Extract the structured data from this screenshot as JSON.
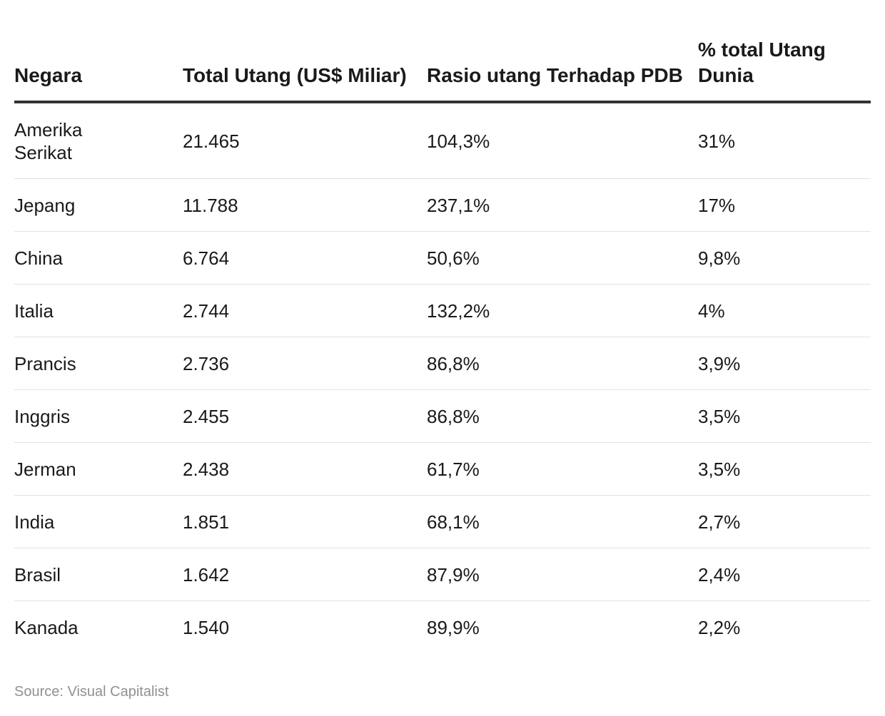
{
  "chart_data": {
    "type": "table",
    "columns": [
      "Negara",
      "Total Utang (US$ Miliar)",
      "Rasio utang Terhadap PDB",
      "% total Utang Dunia"
    ],
    "rows": [
      [
        "Amerika Serikat",
        "21.465",
        "104,3%",
        "31%"
      ],
      [
        "Jepang",
        "11.788",
        "237,1%",
        "17%"
      ],
      [
        "China",
        "6.764",
        "50,6%",
        "9,8%"
      ],
      [
        "Italia",
        "2.744",
        "132,2%",
        "4%"
      ],
      [
        "Prancis",
        "2.736",
        "86,8%",
        "3,9%"
      ],
      [
        "Inggris",
        "2.455",
        "86,8%",
        "3,5%"
      ],
      [
        "Jerman",
        "2.438",
        "61,7%",
        "3,5%"
      ],
      [
        "India",
        "1.851",
        "68,1%",
        "2,7%"
      ],
      [
        "Brasil",
        "1.642",
        "87,9%",
        "2,4%"
      ],
      [
        "Kanada",
        "1.540",
        "89,9%",
        "2,2%"
      ]
    ],
    "source": "Source: Visual Capitalist"
  },
  "colors": {
    "text": "#1a1a1a",
    "header_rule": "#333333",
    "row_rule": "#e2e2e2",
    "source_text": "#909090"
  }
}
